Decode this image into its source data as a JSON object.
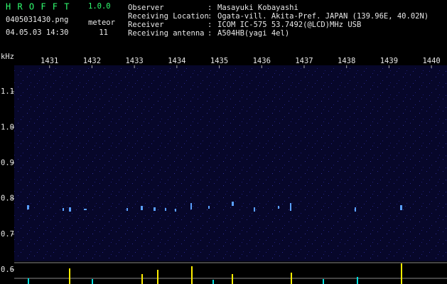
{
  "header": {
    "app_name": "H R O F F T",
    "version": "1.0.0",
    "filename": "0405031430.png",
    "meteor_label": "meteor",
    "datetime": "04.05.03 14:30",
    "meteor_count": 11
  },
  "info_separator": ":",
  "info": [
    {
      "label": "Observer",
      "value": "Masayuki Kobayashi"
    },
    {
      "label": "Receiving Location",
      "value": "Ogata-vill. Akita-Pref. JAPAN (139.96E, 40.02N)"
    },
    {
      "label": "Receiver",
      "value": "ICOM IC-575 53.7492(@LCD)MHz USB"
    },
    {
      "label": "Receiving antenna",
      "value": "A504HB(yagi 4el)"
    }
  ],
  "chart_data": {
    "type": "spectrogram",
    "y_label": "kHz",
    "xlim": [
      1430,
      1440.35
    ],
    "xticks": [
      1431,
      1432,
      1433,
      1434,
      1435,
      1436,
      1437,
      1438,
      1439,
      1440
    ],
    "ylim": [
      0.56,
      1.174
    ],
    "yticks": [
      1.1,
      {
        "value": 1,
        "label": "1.0"
      },
      0.9,
      0.8,
      0.7,
      0.6
    ]
  }
}
